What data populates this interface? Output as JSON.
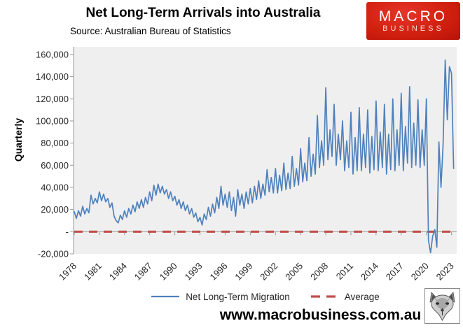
{
  "header": {
    "title": "Net Long-Term Arrivals into Australia",
    "subtitle": "Source: Australian Bureau of Statistics",
    "logo": {
      "line1": "MACRO",
      "line2": "BUSINESS",
      "bg_color": "#d2200f",
      "text_color": "#ffffff"
    }
  },
  "footer": {
    "url": "www.macrobusiness.com.au"
  },
  "chart_data": {
    "type": "line",
    "title": "Net Long-Term Arrivals into Australia",
    "subtitle": "Source: Australian Bureau of Statistics",
    "ylabel": "Quarterly",
    "xlabel": "",
    "ylim": [
      -20000,
      160000
    ],
    "ytick_step": 20000,
    "ytick_labels": [
      "160,000",
      "140,000",
      "120,000",
      "100,000",
      "80,000",
      "60,000",
      "40,000",
      "20,000",
      "-",
      "-20,000"
    ],
    "ytick_values": [
      160000,
      140000,
      120000,
      100000,
      80000,
      60000,
      40000,
      20000,
      0,
      -20000
    ],
    "xtick_labels": [
      "1978",
      "1981",
      "1984",
      "1987",
      "1990",
      "1993",
      "1996",
      "1999",
      "2002",
      "2005",
      "2008",
      "2011",
      "2014",
      "2017",
      "2020",
      "2023"
    ],
    "x_start_year": 1978,
    "frequency": "quarterly",
    "grid": false,
    "legend_position": "bottom",
    "legend": [
      {
        "name": "Net Long-Term Migration",
        "color": "#4F81BD",
        "style": "solid"
      },
      {
        "name": "Average",
        "color": "#C0504D",
        "style": "dashed"
      }
    ],
    "average_value": 0,
    "colors": {
      "line": "#4F81BD",
      "average": "#C0504D",
      "plot_bg": "#f0efef",
      "axis": "#9a9a9a",
      "tick_text": "#262626"
    },
    "series": [
      {
        "name": "Net Long-Term Migration",
        "values": [
          18000,
          12000,
          19000,
          14000,
          23000,
          16000,
          21000,
          17000,
          33000,
          25000,
          30000,
          26000,
          36000,
          28000,
          34000,
          27000,
          30000,
          22000,
          26000,
          14000,
          10000,
          8000,
          15000,
          11000,
          19000,
          13000,
          21000,
          16000,
          24000,
          18000,
          27000,
          21000,
          29000,
          22000,
          31000,
          25000,
          36000,
          28000,
          42000,
          33000,
          43000,
          35000,
          41000,
          34000,
          38000,
          30000,
          36000,
          28000,
          32000,
          24000,
          29000,
          21000,
          27000,
          19000,
          24000,
          16000,
          21000,
          13000,
          17000,
          9000,
          13000,
          6000,
          16000,
          11000,
          22000,
          14000,
          25000,
          17000,
          31000,
          21000,
          41000,
          24000,
          34000,
          22000,
          36000,
          19000,
          31000,
          14000,
          38000,
          24000,
          34000,
          21000,
          36000,
          25000,
          39000,
          26000,
          41000,
          29000,
          46000,
          30000,
          43000,
          33000,
          56000,
          36000,
          49000,
          35000,
          57000,
          35000,
          51000,
          37000,
          62000,
          38000,
          53000,
          39000,
          68000,
          41000,
          57000,
          42000,
          75000,
          45000,
          62000,
          46000,
          85000,
          50000,
          70000,
          52000,
          105000,
          58000,
          82000,
          60000,
          130000,
          65000,
          92000,
          68000,
          115000,
          60000,
          88000,
          65000,
          100000,
          55000,
          82000,
          58000,
          108000,
          52000,
          85000,
          55000,
          112000,
          55000,
          88000,
          58000,
          110000,
          53000,
          86000,
          56000,
          118000,
          55000,
          90000,
          58000,
          115000,
          52000,
          88000,
          56000,
          120000,
          55000,
          92000,
          60000,
          125000,
          55000,
          95000,
          62000,
          131000,
          58000,
          98000,
          60000,
          119000,
          58000,
          92000,
          60000,
          120000,
          -8000,
          -19000,
          -4000,
          2000,
          -14000,
          81000,
          40000,
          79000,
          155000,
          101000,
          149000,
          143000,
          57000
        ]
      }
    ]
  }
}
